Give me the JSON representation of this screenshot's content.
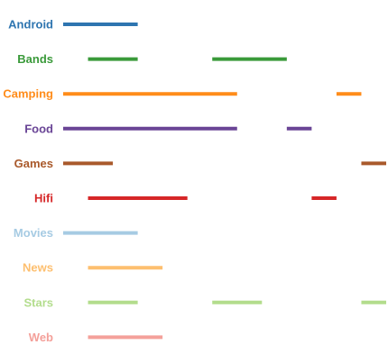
{
  "chart_data": {
    "type": "timeline",
    "categories": [
      {
        "label": "Android",
        "color": "#2e75b0",
        "segments": [
          [
            0,
            3
          ]
        ]
      },
      {
        "label": "Bands",
        "color": "#3a9a3a",
        "segments": [
          [
            1,
            3
          ],
          [
            6,
            9
          ]
        ]
      },
      {
        "label": "Camping",
        "color": "#ff8c1a",
        "segments": [
          [
            0,
            7
          ],
          [
            11,
            12
          ]
        ]
      },
      {
        "label": "Food",
        "color": "#6a4596",
        "segments": [
          [
            0,
            7
          ],
          [
            9,
            10
          ]
        ]
      },
      {
        "label": "Games",
        "color": "#a9592b",
        "segments": [
          [
            0,
            2
          ],
          [
            12,
            13
          ]
        ]
      },
      {
        "label": "Hifi",
        "color": "#d62728",
        "segments": [
          [
            1,
            5
          ],
          [
            10,
            11
          ]
        ]
      },
      {
        "label": "Movies",
        "color": "#a6cbe3",
        "segments": [
          [
            0,
            3
          ]
        ]
      },
      {
        "label": "News",
        "color": "#fdbf6f",
        "segments": [
          [
            1,
            4
          ]
        ]
      },
      {
        "label": "Stars",
        "color": "#b3dd8d",
        "segments": [
          [
            1,
            3
          ],
          [
            6,
            8
          ],
          [
            12,
            13
          ]
        ]
      },
      {
        "label": "Web",
        "color": "#f4a09a",
        "segments": [
          [
            1,
            4
          ]
        ]
      }
    ],
    "xlim": [
      0,
      13
    ],
    "grid": false,
    "legend": "none"
  }
}
